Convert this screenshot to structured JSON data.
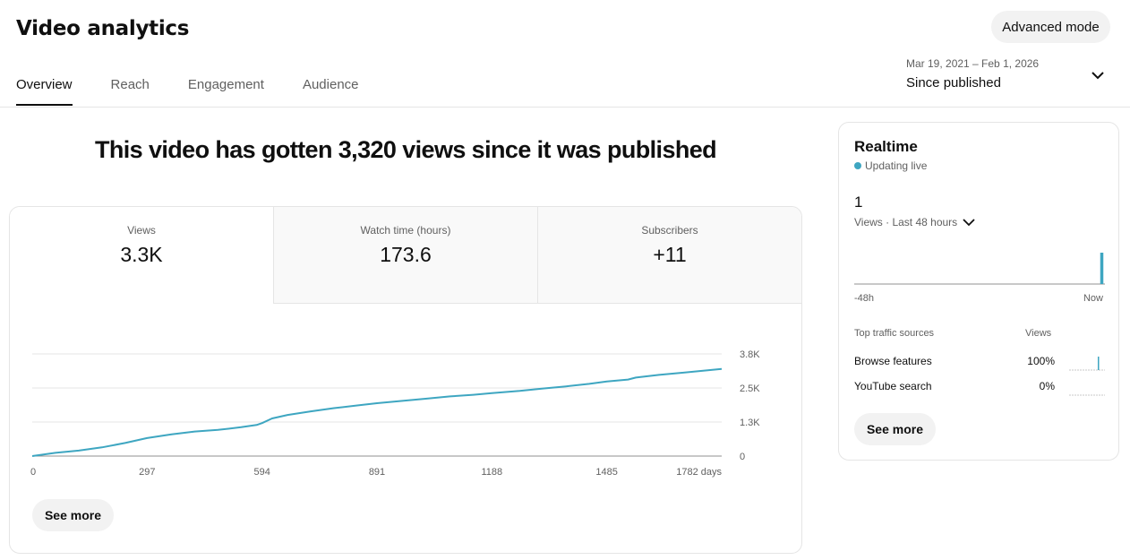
{
  "header": {
    "title": "Video analytics",
    "advanced_mode_label": "Advanced mode",
    "tabs": [
      {
        "label": "Overview",
        "active": true
      },
      {
        "label": "Reach",
        "active": false
      },
      {
        "label": "Engagement",
        "active": false
      },
      {
        "label": "Audience",
        "active": false
      }
    ],
    "date_range": "Mar 19, 2021 – Feb 1, 2026",
    "date_label": "Since published",
    "chevron_icon": "chevron-down-icon"
  },
  "overview": {
    "headline": "This video has gotten 3,320 views since it was published",
    "metrics": [
      {
        "label": "Views",
        "value": "3.3K",
        "active": true
      },
      {
        "label": "Watch time (hours)",
        "value": "173.6",
        "active": false
      },
      {
        "label": "Subscribers",
        "value": "+11",
        "active": false
      }
    ],
    "see_more_label": "See more"
  },
  "chart_data": {
    "type": "line",
    "x_tick_labels": [
      "0",
      "297",
      "594",
      "891",
      "1188",
      "1485",
      "1782 days"
    ],
    "x_ticks": [
      0,
      297,
      594,
      891,
      1188,
      1485,
      1782
    ],
    "y_tick_labels": [
      "0",
      "1.3K",
      "2.5K",
      "3.8K"
    ],
    "y_ticks": [
      0,
      1250,
      2500,
      3750
    ],
    "xlim": [
      0,
      1782
    ],
    "ylim": [
      0,
      3750
    ],
    "grid": true,
    "color": "#3ea6c1",
    "series": [
      {
        "x": [
          0,
          60,
          120,
          180,
          240,
          297,
          360,
          420,
          480,
          540,
          580,
          594,
          620,
          660,
          720,
          780,
          840,
          891,
          960,
          1020,
          1080,
          1140,
          1188,
          1260,
          1320,
          1380,
          1440,
          1485,
          1540,
          1560,
          1620,
          1680,
          1740,
          1782
        ],
        "y": [
          0,
          120,
          200,
          320,
          480,
          660,
          800,
          900,
          960,
          1060,
          1140,
          1210,
          1380,
          1510,
          1640,
          1760,
          1860,
          1940,
          2030,
          2110,
          2190,
          2250,
          2310,
          2390,
          2480,
          2560,
          2650,
          2740,
          2810,
          2880,
          2980,
          3060,
          3140,
          3200
        ]
      }
    ]
  },
  "realtime": {
    "title": "Realtime",
    "live_label": "Updating live",
    "live_color": "#3ea6c1",
    "value": "1",
    "period_label": "Views · Last 48 hours",
    "axis_start": "-48h",
    "axis_end": "Now",
    "bars": [
      {
        "hour": 47,
        "views": 1
      }
    ],
    "traffic_header_source": "Top traffic sources",
    "traffic_header_views": "Views",
    "traffic_sources": [
      {
        "name": "Browse features",
        "percent": "100%",
        "share": 1.0
      },
      {
        "name": "YouTube search",
        "percent": "0%",
        "share": 0.0
      }
    ],
    "see_more_label": "See more"
  }
}
